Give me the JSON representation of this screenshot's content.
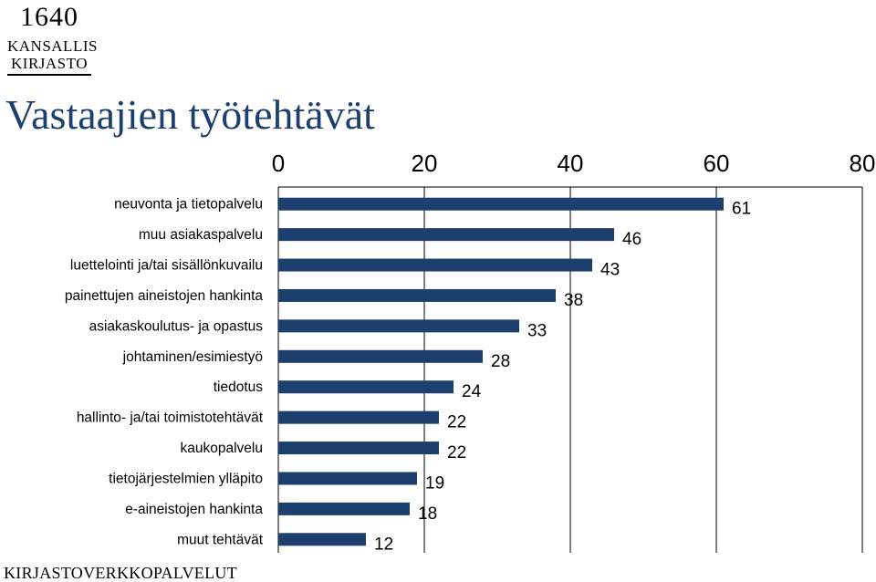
{
  "logo": {
    "year": "1640",
    "line1": "KANSALLIS",
    "line2": "KIRJASTO"
  },
  "page_title": "Vastaajien työtehtävät",
  "footer": "KIRJASTOVERKKOPALVELUT",
  "colors": {
    "bar": "#1c3f6e",
    "title": "#1c3f6e",
    "grid": "#000000"
  },
  "chart_data": {
    "type": "bar",
    "orientation": "horizontal",
    "title": "",
    "xlabel": "",
    "ylabel": "",
    "xlim": [
      0,
      80
    ],
    "xticks": [
      0,
      20,
      40,
      60,
      80
    ],
    "grid": true,
    "axis_position": "top",
    "categories": [
      "neuvonta ja tietopalvelu",
      "muu asiakaspalvelu",
      "luettelointi ja/tai sisällönkuvailu",
      "painettujen aineistojen hankinta",
      "asiakaskoulutus- ja opastus",
      "johtaminen/esimiestyö",
      "tiedotus",
      "hallinto- ja/tai toimistotehtävät",
      "kaukopalvelu",
      "tietojärjestelmien ylläpito",
      "e-aineistojen hankinta",
      "muut tehtävät"
    ],
    "values": [
      61,
      46,
      43,
      38,
      33,
      28,
      24,
      22,
      22,
      19,
      18,
      12
    ]
  }
}
